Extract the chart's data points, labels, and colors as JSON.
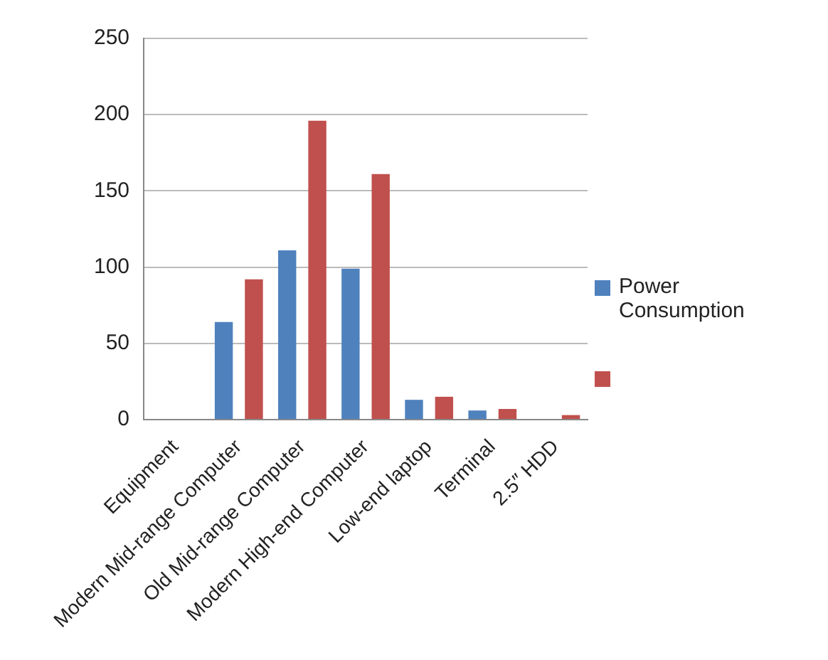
{
  "chart_data": {
    "type": "bar",
    "categories": [
      "Equipment",
      "Modern Mid-range Computer",
      "Old Mid-range Computer",
      "Modern High-end Computer",
      "Low-end laptop",
      "Terminal",
      "2.5″ HDD"
    ],
    "series": [
      {
        "name": "Power Consumption",
        "color": "#4f81bd",
        "values": [
          null,
          64,
          111,
          99,
          13,
          6,
          null
        ]
      },
      {
        "color": "#c0504d",
        "values": [
          null,
          92,
          196,
          161,
          15,
          7,
          3
        ]
      }
    ],
    "ylim": [
      0,
      250
    ],
    "yticks": [
      0,
      50,
      100,
      150,
      200,
      250
    ],
    "grid": "y",
    "legend": "right"
  }
}
